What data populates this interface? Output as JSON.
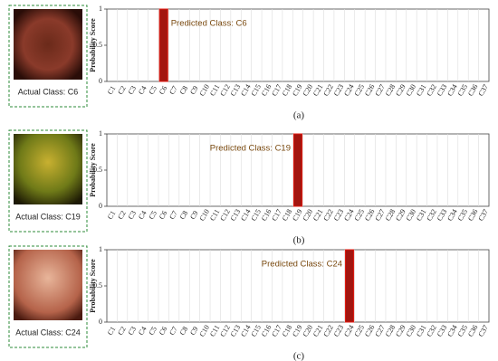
{
  "chart_data": [
    {
      "type": "bar",
      "caption": "Actual Class: C6",
      "annotation": "Predicted Class: C6",
      "panel_label": "(a)",
      "ylabel": "Probability Score",
      "categories": [
        "C1",
        "C2",
        "C3",
        "C4",
        "C5",
        "C6",
        "C7",
        "C8",
        "C9",
        "C10",
        "C11",
        "C12",
        "C13",
        "C14",
        "C15",
        "C16",
        "C17",
        "C18",
        "C19",
        "C20",
        "C21",
        "C22",
        "C23",
        "C24",
        "C25",
        "C26",
        "C27",
        "C28",
        "C29",
        "C30",
        "C31",
        "C32",
        "C33",
        "C34",
        "C35",
        "C36",
        "C37"
      ],
      "values": [
        0,
        0,
        0,
        0,
        0,
        1,
        0,
        0,
        0,
        0,
        0,
        0,
        0,
        0,
        0,
        0,
        0,
        0,
        0,
        0,
        0,
        0,
        0,
        0,
        0,
        0,
        0,
        0,
        0,
        0,
        0,
        0,
        0,
        0,
        0,
        0,
        0
      ],
      "color": "#a3150f",
      "ylim": [
        0,
        1
      ],
      "yticks": [
        0,
        0.5,
        1
      ],
      "grid": true
    },
    {
      "type": "bar",
      "caption": "Actual Class: C19",
      "annotation": "Predicted Class: C19",
      "panel_label": "(b)",
      "ylabel": "Probability Score",
      "categories": [
        "C1",
        "C2",
        "C3",
        "C4",
        "C5",
        "C6",
        "C7",
        "C8",
        "C9",
        "C10",
        "C11",
        "C12",
        "C13",
        "C14",
        "C15",
        "C16",
        "C17",
        "C18",
        "C19",
        "C20",
        "C21",
        "C22",
        "C23",
        "C24",
        "C25",
        "C26",
        "C27",
        "C28",
        "C29",
        "C30",
        "C31",
        "C32",
        "C33",
        "C34",
        "C35",
        "C36",
        "C37"
      ],
      "values": [
        0,
        0,
        0,
        0,
        0,
        0,
        0,
        0,
        0,
        0,
        0,
        0,
        0,
        0,
        0,
        0,
        0,
        0,
        1,
        0,
        0,
        0,
        0,
        0,
        0,
        0,
        0,
        0,
        0,
        0,
        0,
        0,
        0,
        0,
        0,
        0,
        0
      ],
      "color": "#a3150f",
      "ylim": [
        0,
        1
      ],
      "yticks": [
        0,
        0.5,
        1
      ],
      "grid": true
    },
    {
      "type": "bar",
      "caption": "Actual Class: C24",
      "annotation": "Predicted Class: C24",
      "panel_label": "(c)",
      "ylabel": "Probability Score",
      "categories": [
        "C1",
        "C2",
        "C3",
        "C4",
        "C5",
        "C6",
        "C7",
        "C8",
        "C9",
        "C10",
        "C11",
        "C12",
        "C13",
        "C14",
        "C15",
        "C16",
        "C17",
        "C18",
        "C19",
        "C20",
        "C21",
        "C22",
        "C23",
        "C24",
        "C25",
        "C26",
        "C27",
        "C28",
        "C29",
        "C30",
        "C31",
        "C32",
        "C33",
        "C34",
        "C35",
        "C36",
        "C37"
      ],
      "values": [
        0,
        0,
        0,
        0,
        0,
        0,
        0,
        0,
        0,
        0,
        0,
        0,
        0,
        0,
        0,
        0,
        0,
        0,
        0,
        0,
        0,
        0,
        0,
        1,
        0,
        0,
        0,
        0,
        0,
        0,
        0,
        0,
        0,
        0,
        0,
        0,
        0
      ],
      "color": "#a3150f",
      "ylim": [
        0,
        1
      ],
      "yticks": [
        0,
        0.5,
        1
      ],
      "grid": true
    }
  ]
}
